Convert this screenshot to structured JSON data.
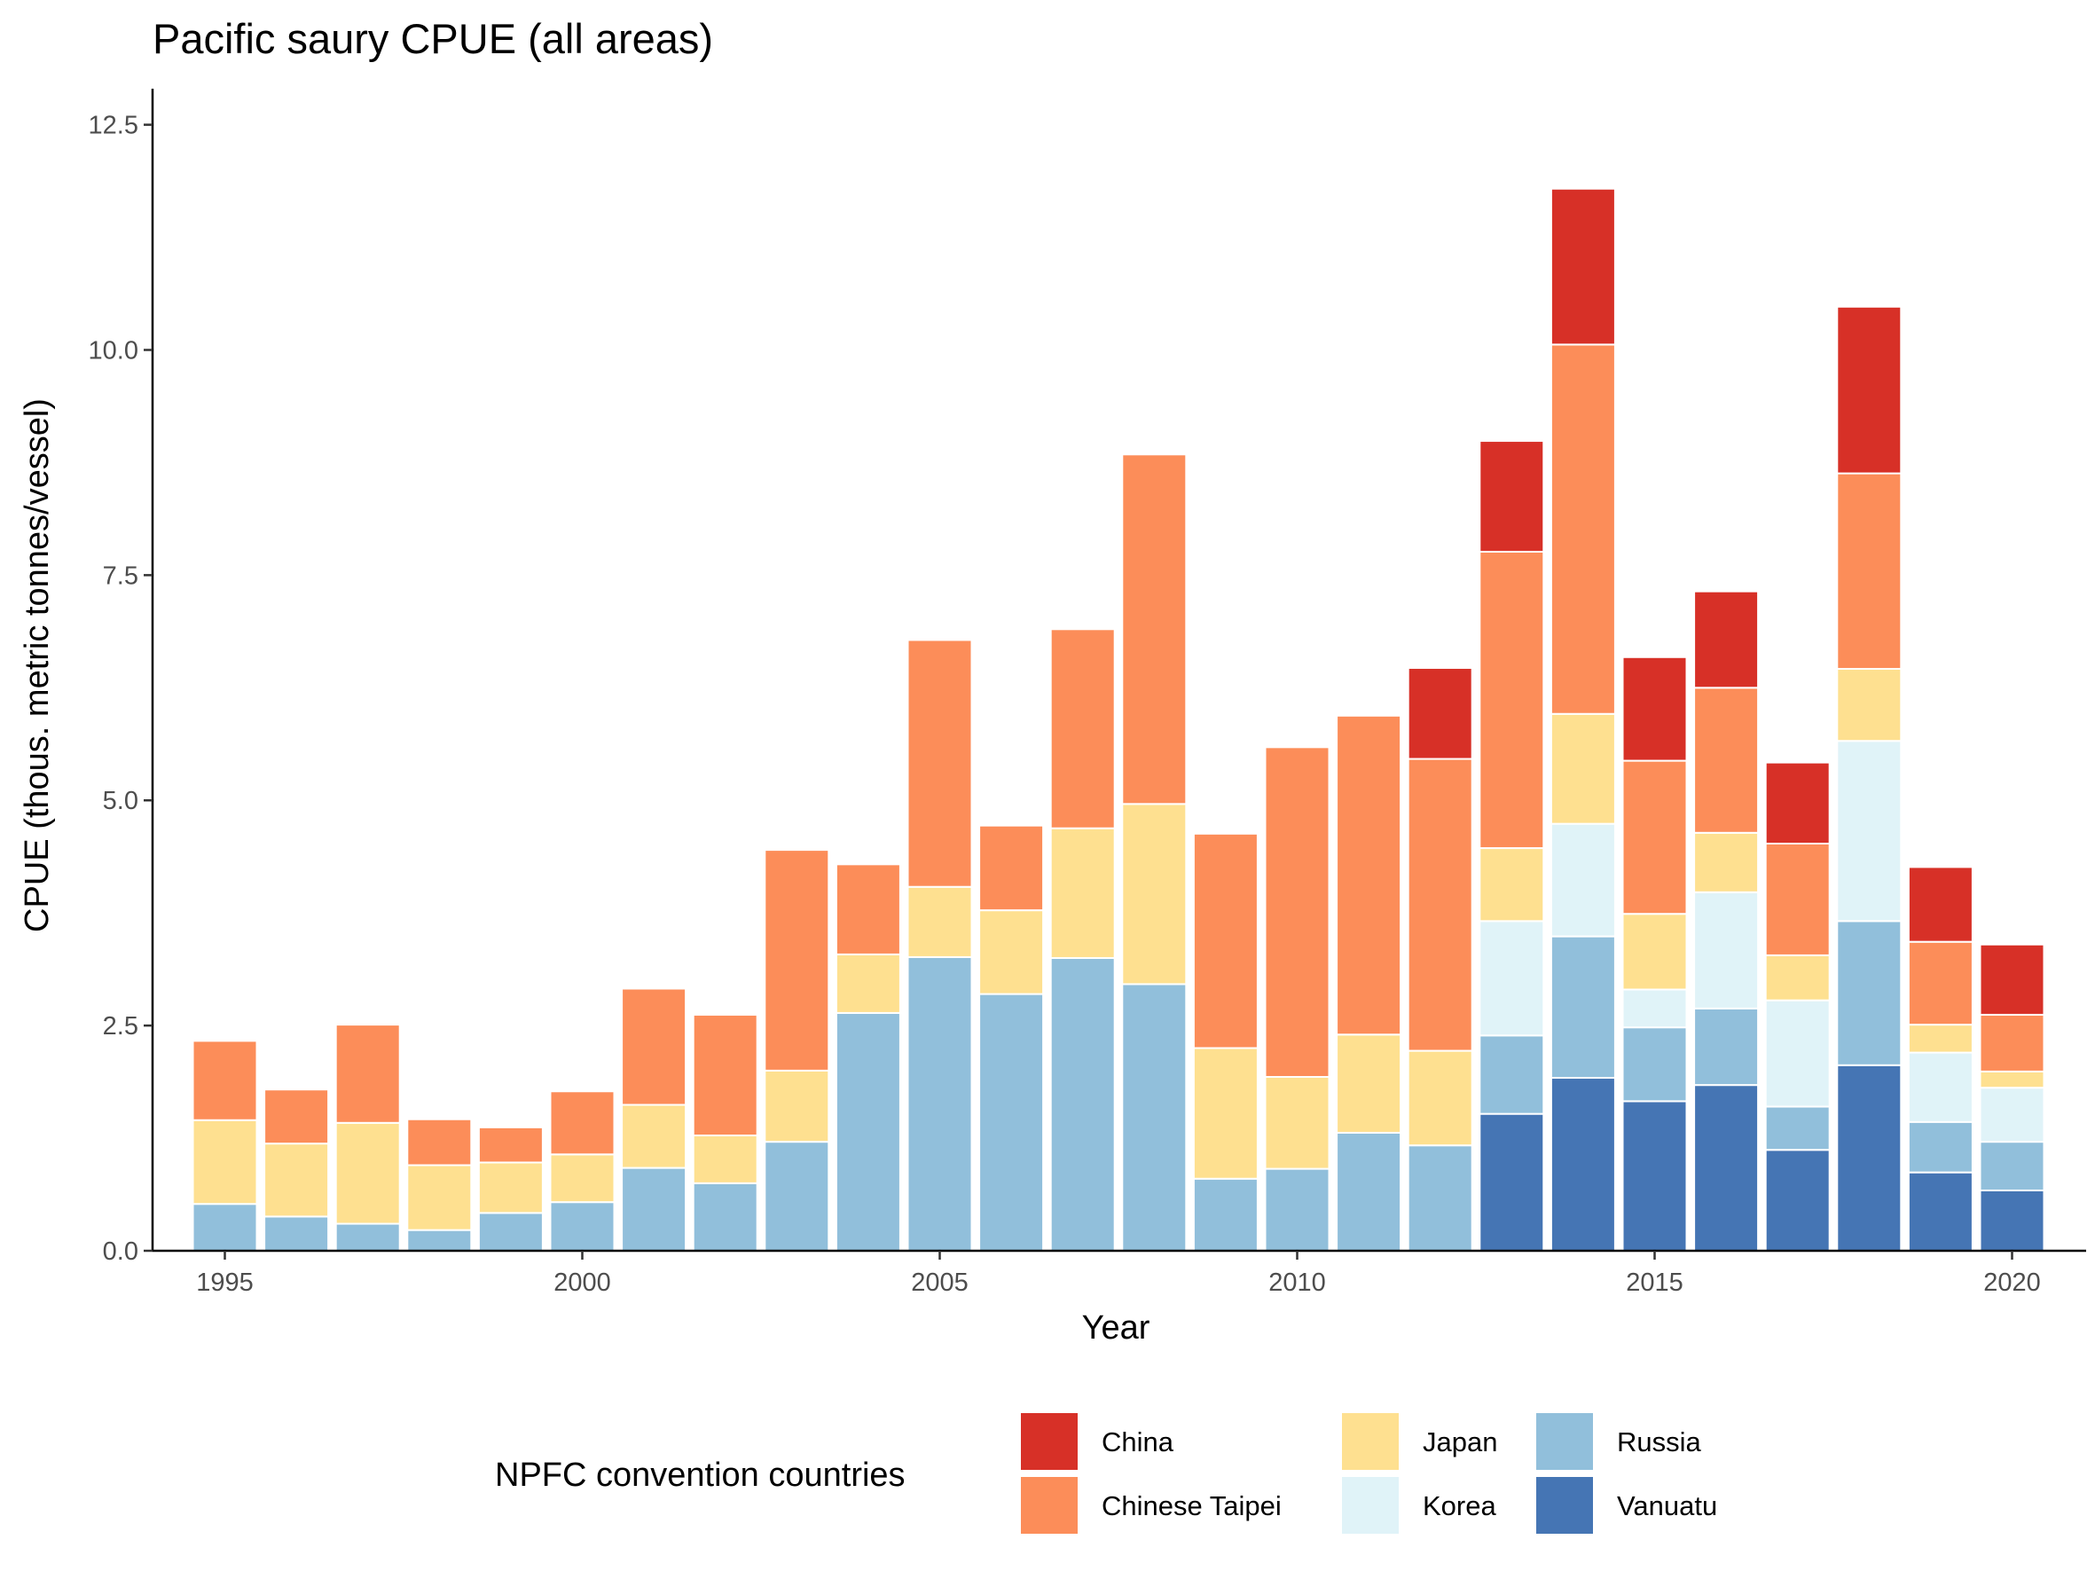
{
  "chart_data": {
    "type": "bar",
    "stacked": true,
    "title": "Pacific saury CPUE (all areas)",
    "xlabel": "Year",
    "ylabel": "CPUE (thous. metric tonnes/vessel)",
    "ylim": [
      0,
      12.9
    ],
    "yticks": [
      0.0,
      2.5,
      5.0,
      7.5,
      10.0,
      12.5
    ],
    "ytick_labels": [
      "0.0",
      "2.5",
      "5.0",
      "7.5",
      "10.0",
      "12.5"
    ],
    "xticks": [
      1995,
      2000,
      2005,
      2010,
      2015,
      2020
    ],
    "xtick_labels": [
      "1995",
      "2000",
      "2005",
      "2010",
      "2015",
      "2020"
    ],
    "grid": false,
    "legend_position": "bottom",
    "legend_title": "NPFC convention countries",
    "categories": [
      1995,
      1996,
      1997,
      1998,
      1999,
      2000,
      2001,
      2002,
      2003,
      2004,
      2005,
      2006,
      2007,
      2008,
      2009,
      2010,
      2011,
      2012,
      2013,
      2014,
      2015,
      2016,
      2017,
      2018,
      2019,
      2020
    ],
    "series": [
      {
        "name": "Vanuatu",
        "color": "#4575b4",
        "values": [
          0,
          0,
          0,
          0,
          0,
          0,
          0,
          0,
          0,
          0,
          0,
          0,
          0,
          0,
          0,
          0,
          0,
          0,
          1.52,
          1.92,
          1.66,
          1.84,
          1.12,
          2.06,
          0.87,
          0.67
        ]
      },
      {
        "name": "Russia",
        "color": "#91bfdb",
        "values": [
          0.52,
          0.38,
          0.3,
          0.23,
          0.42,
          0.54,
          0.92,
          0.75,
          1.21,
          2.64,
          3.26,
          2.85,
          3.25,
          2.96,
          0.8,
          0.91,
          1.31,
          1.17,
          0.87,
          1.57,
          0.82,
          0.85,
          0.48,
          1.6,
          0.56,
          0.54
        ]
      },
      {
        "name": "Korea",
        "color": "#e0f3f8",
        "values": [
          0,
          0,
          0,
          0,
          0,
          0,
          0,
          0,
          0,
          0,
          0,
          0,
          0,
          0,
          0,
          0,
          0,
          0,
          1.27,
          1.25,
          0.42,
          1.29,
          1.18,
          2.0,
          0.77,
          0.6
        ]
      },
      {
        "name": "Japan",
        "color": "#fee090",
        "values": [
          0.93,
          0.81,
          1.12,
          0.72,
          0.56,
          0.53,
          0.7,
          0.53,
          0.79,
          0.65,
          0.78,
          0.93,
          1.44,
          2.0,
          1.45,
          1.02,
          1.09,
          1.05,
          0.81,
          1.22,
          0.84,
          0.66,
          0.5,
          0.8,
          0.31,
          0.18
        ]
      },
      {
        "name": "Chinese Taipei",
        "color": "#fc8d59",
        "values": [
          0.88,
          0.6,
          1.09,
          0.51,
          0.39,
          0.7,
          1.29,
          1.34,
          2.45,
          1.0,
          2.74,
          0.94,
          2.21,
          3.88,
          2.38,
          3.66,
          3.54,
          3.24,
          3.29,
          4.1,
          1.7,
          1.61,
          1.24,
          2.17,
          0.92,
          0.63
        ]
      },
      {
        "name": "China",
        "color": "#d73027",
        "values": [
          0,
          0,
          0,
          0,
          0,
          0,
          0,
          0,
          0,
          0,
          0,
          0,
          0,
          0,
          0,
          0,
          0,
          1.01,
          1.23,
          1.73,
          1.15,
          1.07,
          0.9,
          1.85,
          0.83,
          0.78
        ]
      }
    ]
  }
}
